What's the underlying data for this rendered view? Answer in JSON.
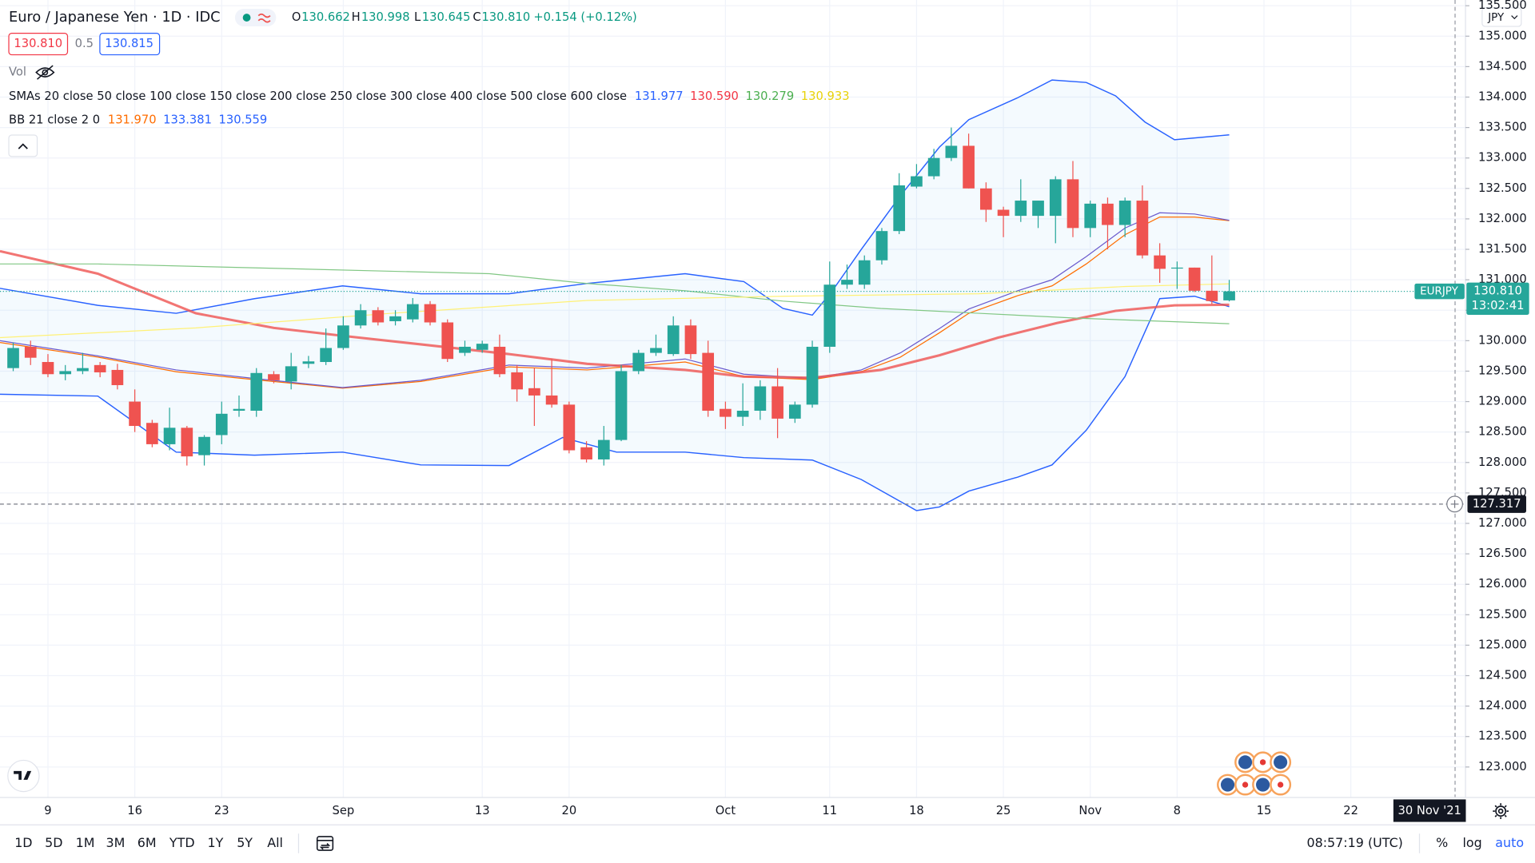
{
  "header": {
    "title": "Euro / Japanese Yen · 1D · IDC",
    "ohlc": [
      {
        "label": "O",
        "value": "130.662"
      },
      {
        "label": "H",
        "value": "130.998"
      },
      {
        "label": "L",
        "value": "130.645"
      },
      {
        "label": "C",
        "value": "130.810"
      }
    ],
    "change": "+0.154 (+0.12%)",
    "sell": "130.810",
    "spread": "0.5",
    "buy": "130.815",
    "volume": "Vol",
    "sma_legend": "SMAs 20 close 50 close 100 close 150 close 200 close 250 close 300 close 400 close 500 close 600 close",
    "sma_values": [
      {
        "text": "131.977",
        "color": "#2962ff"
      },
      {
        "text": "130.590",
        "color": "#f23645"
      },
      {
        "text": "130.279",
        "color": "#4caf50"
      },
      {
        "text": "130.933",
        "color": "#e8d20a"
      }
    ],
    "bb_legend": "BB 21 close 2 0",
    "bb_values": [
      {
        "text": "131.970",
        "color": "#ff6d00"
      },
      {
        "text": "133.381",
        "color": "#2962ff"
      },
      {
        "text": "130.559",
        "color": "#2962ff"
      }
    ],
    "currency": "JPY"
  },
  "chart_data": {
    "type": "candlestick",
    "grid": true,
    "xlim": [
      2.24,
      86.6
    ],
    "ylim": [
      122.5,
      135.594
    ],
    "xticks": [
      {
        "value": 5,
        "label": "9"
      },
      {
        "value": 10,
        "label": "16"
      },
      {
        "value": 15,
        "label": "23"
      },
      {
        "value": 22,
        "label": "Sep"
      },
      {
        "value": 30,
        "label": "13"
      },
      {
        "value": 35,
        "label": "20"
      },
      {
        "value": 44,
        "label": "Oct"
      },
      {
        "value": 50,
        "label": "11"
      },
      {
        "value": 55,
        "label": "18"
      },
      {
        "value": 60,
        "label": "25"
      },
      {
        "value": 65,
        "label": "Nov"
      },
      {
        "value": 70,
        "label": "8"
      },
      {
        "value": 75,
        "label": "15"
      },
      {
        "value": 80,
        "label": "22"
      }
    ],
    "yticks": [
      {
        "value": 123,
        "label": "123.000"
      },
      {
        "value": 123.5,
        "label": "123.500"
      },
      {
        "value": 124,
        "label": "124.000"
      },
      {
        "value": 124.5,
        "label": "124.500"
      },
      {
        "value": 125,
        "label": "125.000"
      },
      {
        "value": 125.5,
        "label": "125.500"
      },
      {
        "value": 126,
        "label": "126.000"
      },
      {
        "value": 126.5,
        "label": "126.500"
      },
      {
        "value": 127,
        "label": "127.000"
      },
      {
        "value": 127.5,
        "label": "127.500"
      },
      {
        "value": 128,
        "label": "128.000"
      },
      {
        "value": 128.5,
        "label": "128.500"
      },
      {
        "value": 129,
        "label": "129.000"
      },
      {
        "value": 129.5,
        "label": "129.500"
      },
      {
        "value": 130,
        "label": "130.000"
      },
      {
        "value": 130.5,
        "label": "130.500"
      },
      {
        "value": 131,
        "label": "131.000"
      },
      {
        "value": 131.5,
        "label": "131.500"
      },
      {
        "value": 132,
        "label": "132.000"
      },
      {
        "value": 132.5,
        "label": "132.500"
      },
      {
        "value": 133,
        "label": "133.000"
      },
      {
        "value": 133.5,
        "label": "133.500"
      },
      {
        "value": 134,
        "label": "134.000"
      },
      {
        "value": 134.5,
        "label": "134.500"
      },
      {
        "value": 135,
        "label": "135.000"
      },
      {
        "value": 135.5,
        "label": "135.500"
      }
    ],
    "up_color": "#26a69a",
    "down_color": "#ef5350",
    "x": [
      3,
      4,
      5,
      6,
      7,
      8,
      9,
      10,
      11,
      12,
      13,
      14,
      15,
      16,
      17,
      18,
      19,
      20,
      21,
      22,
      23,
      24,
      25,
      26,
      27,
      28,
      29,
      30,
      31,
      32,
      33,
      34,
      35,
      36,
      37,
      38,
      39,
      40,
      41,
      42,
      43,
      44,
      45,
      46,
      47,
      48,
      49,
      50,
      51,
      52,
      53,
      54,
      55,
      56,
      57,
      58,
      59,
      60,
      61,
      62,
      63,
      64,
      65,
      66,
      67,
      68,
      69,
      70,
      71,
      72,
      73
    ],
    "open": [
      129.55,
      129.9,
      129.65,
      129.45,
      129.5,
      129.6,
      129.52,
      129.0,
      128.65,
      128.3,
      128.57,
      128.12,
      128.45,
      128.85,
      128.85,
      129.45,
      129.33,
      129.62,
      129.65,
      129.88,
      130.25,
      130.5,
      130.32,
      130.35,
      130.6,
      130.3,
      129.8,
      129.85,
      129.9,
      129.48,
      129.22,
      129.1,
      128.95,
      128.25,
      128.05,
      128.37,
      129.5,
      129.8,
      129.78,
      130.25,
      129.8,
      128.88,
      128.75,
      128.85,
      129.25,
      128.72,
      128.95,
      129.9,
      130.92,
      130.92,
      131.32,
      131.8,
      132.53,
      132.7,
      133.0,
      133.2,
      132.5,
      132.15,
      132.05,
      132.05,
      132.05,
      132.65,
      131.85,
      132.25,
      131.9,
      132.3,
      131.4,
      131.2,
      131.2,
      130.82,
      130.662
    ],
    "high": [
      129.97,
      130.0,
      129.78,
      129.6,
      129.8,
      129.65,
      129.62,
      129.2,
      128.7,
      128.9,
      128.6,
      128.45,
      129.0,
      129.1,
      129.55,
      129.5,
      129.8,
      129.75,
      130.2,
      130.4,
      130.6,
      130.55,
      130.5,
      130.7,
      130.65,
      130.35,
      130.0,
      130.0,
      130.1,
      129.6,
      129.55,
      129.7,
      129.0,
      128.35,
      128.6,
      129.6,
      129.85,
      130.1,
      130.4,
      130.35,
      130.0,
      129.0,
      129.3,
      129.35,
      129.55,
      129.0,
      130.0,
      131.3,
      131.25,
      131.4,
      131.85,
      132.75,
      132.9,
      133.15,
      133.5,
      133.4,
      132.6,
      132.2,
      132.65,
      132.3,
      132.7,
      132.95,
      132.3,
      132.35,
      132.35,
      132.55,
      131.6,
      131.3,
      131.2,
      131.4,
      130.998
    ],
    "low": [
      129.5,
      129.6,
      129.4,
      129.35,
      129.45,
      129.4,
      129.2,
      128.5,
      128.25,
      128.2,
      127.95,
      127.95,
      128.3,
      128.75,
      128.75,
      129.3,
      129.2,
      129.55,
      129.6,
      129.85,
      130.2,
      130.25,
      130.25,
      130.3,
      130.25,
      129.65,
      129.75,
      129.8,
      129.4,
      129.0,
      128.6,
      128.9,
      128.15,
      128.0,
      127.95,
      128.35,
      129.45,
      129.75,
      129.75,
      129.7,
      128.75,
      128.55,
      128.6,
      128.7,
      128.4,
      128.65,
      128.9,
      129.8,
      130.85,
      130.85,
      131.25,
      131.75,
      132.5,
      132.65,
      132.95,
      132.5,
      131.95,
      131.7,
      131.95,
      131.85,
      131.6,
      131.7,
      131.7,
      131.5,
      131.7,
      131.35,
      130.95,
      130.85,
      130.8,
      130.6,
      130.645
    ],
    "close": [
      129.88,
      129.72,
      129.45,
      129.5,
      129.55,
      129.48,
      129.27,
      128.6,
      128.3,
      128.57,
      128.1,
      128.42,
      128.8,
      128.88,
      129.47,
      129.35,
      129.58,
      129.66,
      129.88,
      130.25,
      130.5,
      130.3,
      130.4,
      130.6,
      130.3,
      129.7,
      129.9,
      129.95,
      129.45,
      129.2,
      129.1,
      128.95,
      128.2,
      128.05,
      128.37,
      129.5,
      129.8,
      129.88,
      130.25,
      129.78,
      128.85,
      128.75,
      128.85,
      129.25,
      128.72,
      128.95,
      129.9,
      130.92,
      131.0,
      131.32,
      131.8,
      132.55,
      132.7,
      133.0,
      133.2,
      132.5,
      132.15,
      132.05,
      132.3,
      132.3,
      132.65,
      131.85,
      132.25,
      131.9,
      132.3,
      131.4,
      131.18,
      131.2,
      130.82,
      130.65,
      130.81
    ],
    "lines": [
      {
        "color": "#2962ff",
        "width": 1.2,
        "x": [
          2.24,
          7.87,
          12.38,
          16.89,
          21.96,
          26.46,
          31.54,
          36.04,
          41.68,
          45.06,
          47.31,
          49.0,
          50.13,
          51.82,
          54.07,
          56.32,
          58.01,
          60.83,
          62.8,
          64.77,
          66.46,
          68.15,
          69.85,
          73
        ],
        "values": [
          130.86,
          130.58,
          130.45,
          130.69,
          130.9,
          130.77,
          130.77,
          130.94,
          131.1,
          130.97,
          130.53,
          130.42,
          130.81,
          131.5,
          132.38,
          133.18,
          133.63,
          133.99,
          134.28,
          134.24,
          134.02,
          133.59,
          133.3,
          133.38
        ]
      },
      {
        "color": "#2962ff",
        "width": 1.2,
        "x": [
          2.24,
          7.87,
          12.38,
          16.89,
          21.96,
          26.46,
          31.54,
          34.63,
          37.73,
          41.68,
          45.06,
          49.0,
          51.82,
          55.0,
          56.32,
          58.01,
          60.83,
          62.8,
          64.77,
          67.0,
          69.0,
          71.0,
          73
        ],
        "values": [
          129.12,
          129.09,
          128.17,
          128.12,
          128.17,
          127.96,
          127.95,
          128.41,
          128.17,
          128.17,
          128.08,
          128.04,
          127.72,
          127.21,
          127.27,
          127.53,
          127.76,
          127.96,
          128.53,
          129.41,
          130.69,
          130.73,
          130.559
        ]
      },
      {
        "color": "#ff6d00",
        "width": 1,
        "x": [
          2.24,
          7.87,
          12.38,
          16.89,
          21.96,
          26.46,
          31.54,
          36.04,
          41.68,
          45.06,
          49.0,
          51.82,
          54.07,
          56.32,
          58.01,
          60.83,
          62.8,
          64.77,
          67.0,
          69.0,
          71.0,
          73
        ],
        "values": [
          129.97,
          129.73,
          129.49,
          129.36,
          129.22,
          129.33,
          129.57,
          129.52,
          129.65,
          129.41,
          129.36,
          129.49,
          129.73,
          130.13,
          130.45,
          130.74,
          130.9,
          131.26,
          131.74,
          132.03,
          132.03,
          131.97
        ]
      },
      {
        "color": "#6a5acd",
        "width": 1,
        "x": [
          2.24,
          7.87,
          12.38,
          16.89,
          21.96,
          26.46,
          31.54,
          36.04,
          41.68,
          45.06,
          49.0,
          51.82,
          54.07,
          56.32,
          58.01,
          60.83,
          62.8,
          64.77,
          67.0,
          69.0,
          71.0,
          73
        ],
        "values": [
          130.0,
          129.75,
          129.52,
          129.38,
          129.23,
          129.35,
          129.6,
          129.55,
          129.7,
          129.45,
          129.38,
          129.52,
          129.8,
          130.2,
          130.52,
          130.82,
          131.0,
          131.38,
          131.85,
          132.1,
          132.08,
          131.977
        ]
      },
      {
        "color": "#ef5350",
        "width": 2.5,
        "x": [
          2.24,
          7.87,
          13.51,
          18.01,
          21.96,
          26.46,
          31.54,
          36.04,
          41.68,
          45.06,
          49.0,
          52.94,
          56.32,
          59.7,
          63.08,
          66.46,
          69.85,
          73
        ],
        "values": [
          131.47,
          131.1,
          130.45,
          130.21,
          130.08,
          129.94,
          129.78,
          129.62,
          129.52,
          129.41,
          129.39,
          129.52,
          129.76,
          130.05,
          130.29,
          130.49,
          130.58,
          130.59
        ]
      },
      {
        "color": "#81c784",
        "width": 1,
        "x": [
          2.24,
          7.87,
          19.14,
          30.41,
          36.04,
          41.68,
          47.31,
          52.94,
          58.58,
          64.21,
          73
        ],
        "values": [
          131.26,
          131.26,
          131.18,
          131.1,
          130.94,
          130.82,
          130.65,
          130.53,
          130.45,
          130.37,
          130.279
        ]
      },
      {
        "color": "#fff176",
        "width": 1,
        "x": [
          2.24,
          13.51,
          24.77,
          36.04,
          47.31,
          58.58,
          67.03,
          73
        ],
        "values": [
          130.05,
          130.21,
          130.45,
          130.66,
          130.73,
          130.77,
          130.89,
          130.933
        ]
      }
    ],
    "band_fill": "#2196f3",
    "symbol": "EURJPY",
    "last_label": "130.810",
    "countdown": "13:02:41",
    "crosshair": {
      "x": 86,
      "y": 127.317,
      "date": "30 Nov '21"
    }
  },
  "toolbar": {
    "ranges": [
      "1D",
      "5D",
      "1M",
      "3M",
      "6M",
      "YTD",
      "1Y",
      "5Y",
      "All"
    ],
    "time": "08:57:19 (UTC)",
    "options": [
      "%",
      "log",
      "auto"
    ]
  }
}
